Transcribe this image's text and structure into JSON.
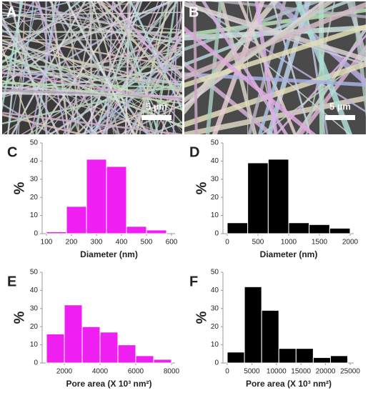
{
  "images": [
    {
      "label": "A",
      "scale_bar": "5 µm"
    },
    {
      "label": "B",
      "scale_bar": "5 µm"
    }
  ],
  "chart_data": [
    {
      "type": "histogram",
      "label": "C",
      "ylabel": "%",
      "xlabel": "Diameter (nm)",
      "color": "#ee1ff0",
      "bins": [
        100,
        180,
        260,
        340,
        420,
        500,
        580
      ],
      "values": [
        1,
        15,
        41,
        37,
        4,
        2
      ],
      "xlim": [
        100,
        600
      ],
      "xticks": [
        100,
        200,
        300,
        400,
        500,
        600
      ],
      "ylim": [
        0,
        50
      ],
      "yticks": [
        0,
        10,
        20,
        30,
        40,
        50
      ]
    },
    {
      "type": "histogram",
      "label": "D",
      "ylabel": "%",
      "xlabel": "Diameter (nm)",
      "color": "#000000",
      "bins": [
        0,
        333,
        667,
        1000,
        1333,
        1667,
        2000
      ],
      "values": [
        6,
        39,
        41,
        6,
        5,
        3
      ],
      "xlim": [
        0,
        2000
      ],
      "xticks": [
        0,
        500,
        1000,
        1500,
        2000
      ],
      "ylim": [
        0,
        50
      ],
      "yticks": [
        0,
        10,
        20,
        30,
        40,
        50
      ]
    },
    {
      "type": "histogram",
      "label": "E",
      "ylabel": "%",
      "xlabel": "Pore area (X 10³ nm²)",
      "color": "#ee1ff0",
      "bins": [
        1000,
        2000,
        3000,
        4000,
        5000,
        6000,
        7000,
        8000
      ],
      "values": [
        16,
        32,
        20,
        17,
        10,
        4,
        2
      ],
      "xlim": [
        1000,
        8000
      ],
      "xticks": [
        2000,
        4000,
        6000,
        8000
      ],
      "ylim": [
        0,
        50
      ],
      "yticks": [
        0,
        10,
        20,
        30,
        40,
        50
      ]
    },
    {
      "type": "histogram",
      "label": "F",
      "ylabel": "%",
      "xlabel": "Pore area (X 10³ nm²)",
      "color": "#000000",
      "bins": [
        0,
        3500,
        7000,
        10500,
        14000,
        17500,
        21000,
        24500
      ],
      "values": [
        6,
        42,
        29,
        8,
        8,
        3,
        4
      ],
      "xlim": [
        0,
        25000
      ],
      "xticks": [
        0,
        5000,
        10000,
        15000,
        20000,
        25000
      ],
      "ylim": [
        0,
        50
      ],
      "yticks": [
        0,
        10,
        20,
        30,
        40,
        50
      ]
    }
  ]
}
